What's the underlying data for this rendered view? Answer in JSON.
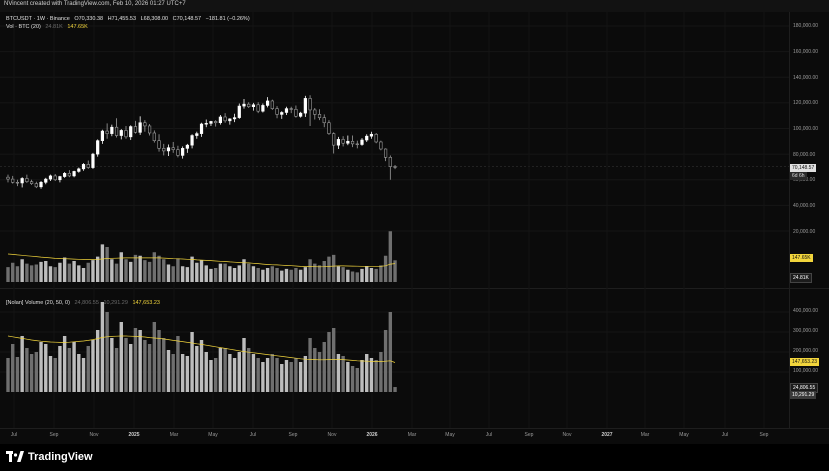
{
  "header": {
    "credit": "NVincent created with TradingView.com, Feb 10, 2026 01:27 UTC+7"
  },
  "main_pane": {
    "symbol": "BTCUSDT · 1W · Binance",
    "ohlc": {
      "open": "O70,330.38",
      "high": "H71,455.53",
      "low": "L68,308.00",
      "close": "C70,148.57",
      "change": "−181.81 (−0.26%)"
    },
    "vol_row": {
      "label": "Vol · BTC (20)",
      "value_muted": "24.81K",
      "value_yellow": "147.65K"
    }
  },
  "volume_pane": {
    "label": "[Nolan] Volume (20, 50, 0)",
    "value_muted_1": "24,806.55",
    "value_muted_2": "10,291.29",
    "value_yellow": "147,653.23"
  },
  "price_axis": {
    "labels": [
      "180,000.00",
      "160,000.00",
      "140,000.00",
      "120,000.00",
      "100,000.00",
      "80,000.00",
      "60,000.00",
      "40,000.00",
      "20,000.00"
    ],
    "current_price": "70,148.57",
    "countdown": "6d 6h",
    "vol_ma_badge": "147.65K",
    "vol_badge": "24.81K"
  },
  "volume_axis": {
    "labels": [
      "400,000.00",
      "300,000.00",
      "200,000.00",
      "100,000.00"
    ],
    "ma_badge": "147,653.23",
    "vol_badge": "24,806.55",
    "vol_badge_2": "10,291.29"
  },
  "time_axis": {
    "labels": [
      "Jul",
      "Sep",
      "Nov",
      "2025",
      "Mar",
      "May",
      "Jul",
      "Sep",
      "Nov",
      "2026",
      "Mar",
      "May",
      "Jul",
      "Sep",
      "Nov",
      "2027",
      "Mar",
      "May",
      "Jul",
      "Sep"
    ],
    "bold_labels": [
      "2025",
      "2026",
      "2027"
    ]
  },
  "footer": {
    "brand": "TradingView"
  },
  "colors": {
    "background": "#0b0b0b",
    "candle_up": "#ffffff",
    "candle_down": "#9e9e9e",
    "ma_line": "#f2d53c",
    "volume_up": "#bdbdbd",
    "volume_down": "#6f6f6f"
  },
  "chart_data": {
    "type": "candlestick",
    "timeframe": "1W",
    "symbol": "BTCUSDT",
    "ylim": [
      0,
      190000
    ],
    "candles": [
      [
        62000,
        64000,
        58000,
        60500
      ],
      [
        60500,
        63000,
        57000,
        58000
      ],
      [
        58000,
        60000,
        55000,
        57500
      ],
      [
        57500,
        62000,
        54000,
        61000
      ],
      [
        61000,
        64000,
        57500,
        58500
      ],
      [
        58500,
        60000,
        56000,
        57000
      ],
      [
        57000,
        58500,
        53500,
        54500
      ],
      [
        54500,
        59000,
        53000,
        58000
      ],
      [
        58000,
        61500,
        56500,
        60500
      ],
      [
        60500,
        64000,
        59000,
        63000
      ],
      [
        63000,
        64500,
        59000,
        60000
      ],
      [
        60000,
        63000,
        58000,
        62500
      ],
      [
        62500,
        66000,
        61500,
        65000
      ],
      [
        65000,
        67500,
        62000,
        63000
      ],
      [
        63000,
        67000,
        62000,
        66500
      ],
      [
        66500,
        69500,
        65500,
        68500
      ],
      [
        68500,
        73000,
        67000,
        72000
      ],
      [
        72000,
        75000,
        68500,
        69500
      ],
      [
        69500,
        81000,
        68500,
        80000
      ],
      [
        80000,
        91500,
        78000,
        90500
      ],
      [
        90500,
        99000,
        88000,
        98000
      ],
      [
        98000,
        104000,
        92000,
        96000
      ],
      [
        96000,
        103000,
        94000,
        101000
      ],
      [
        101000,
        108000,
        93000,
        94500
      ],
      [
        94500,
        99500,
        91500,
        98500
      ],
      [
        98500,
        102000,
        92000,
        93500
      ],
      [
        93500,
        102500,
        91000,
        101500
      ],
      [
        101500,
        106000,
        96000,
        97000
      ],
      [
        97000,
        109500,
        95000,
        104500
      ],
      [
        104500,
        106500,
        97500,
        102000
      ],
      [
        102000,
        103500,
        94500,
        96500
      ],
      [
        96500,
        98500,
        89000,
        90500
      ],
      [
        90500,
        95500,
        82000,
        84500
      ],
      [
        84500,
        88000,
        79000,
        82500
      ],
      [
        82500,
        87500,
        78500,
        85000
      ],
      [
        85000,
        89500,
        81000,
        83500
      ],
      [
        83500,
        86500,
        77500,
        79000
      ],
      [
        79000,
        86000,
        76500,
        84500
      ],
      [
        84500,
        88000,
        81000,
        87000
      ],
      [
        87000,
        95500,
        84500,
        94500
      ],
      [
        94500,
        97500,
        92000,
        96000
      ],
      [
        96000,
        104500,
        93500,
        103500
      ],
      [
        103500,
        107000,
        101000,
        104000
      ],
      [
        104000,
        106000,
        102000,
        105500
      ],
      [
        105500,
        106500,
        101500,
        104500
      ],
      [
        104500,
        110500,
        103000,
        109000
      ],
      [
        109000,
        112000,
        104500,
        106000
      ],
      [
        106000,
        108000,
        103000,
        107500
      ],
      [
        107500,
        111500,
        105000,
        108500
      ],
      [
        108500,
        119500,
        107500,
        117500
      ],
      [
        117500,
        123000,
        115500,
        119000
      ],
      [
        119000,
        120500,
        116000,
        117000
      ],
      [
        117000,
        120000,
        114000,
        118500
      ],
      [
        118500,
        120500,
        112000,
        113500
      ],
      [
        113500,
        119500,
        112500,
        118000
      ],
      [
        118000,
        124500,
        116500,
        121500
      ],
      [
        121500,
        122500,
        114500,
        115500
      ],
      [
        115500,
        117500,
        108000,
        111000
      ],
      [
        111000,
        113500,
        107500,
        112500
      ],
      [
        112500,
        117000,
        110500,
        115500
      ],
      [
        115500,
        117000,
        112000,
        115000
      ],
      [
        115000,
        118000,
        108500,
        109500
      ],
      [
        109500,
        113000,
        108500,
        112000
      ],
      [
        112000,
        125500,
        109000,
        123500
      ],
      [
        123500,
        126000,
        102000,
        114500
      ],
      [
        114500,
        116000,
        107000,
        111000
      ],
      [
        111000,
        115000,
        106500,
        108500
      ],
      [
        108500,
        111000,
        101000,
        104500
      ],
      [
        104500,
        106500,
        95000,
        96000
      ],
      [
        96000,
        97000,
        80500,
        87000
      ],
      [
        87000,
        93500,
        84000,
        91500
      ],
      [
        91500,
        94000,
        86000,
        88500
      ],
      [
        88500,
        94500,
        87000,
        90000
      ],
      [
        90000,
        94500,
        85500,
        88000
      ],
      [
        88000,
        90500,
        84500,
        87500
      ],
      [
        87500,
        92500,
        86500,
        91000
      ],
      [
        91000,
        95500,
        89500,
        94000
      ],
      [
        94000,
        97500,
        92000,
        95500
      ],
      [
        95500,
        96500,
        88500,
        89500
      ],
      [
        89500,
        90500,
        83000,
        84000
      ],
      [
        84000,
        84500,
        74500,
        77500
      ],
      [
        77500,
        79000,
        60000,
        70300
      ],
      [
        70300,
        71500,
        68300,
        70150
      ]
    ],
    "volume_pane_1": {
      "ylim": [
        0,
        80000
      ],
      "values": [
        17000,
        22000,
        18000,
        26000,
        21000,
        19000,
        20000,
        23000,
        24000,
        18000,
        17000,
        22000,
        28000,
        21000,
        24000,
        19000,
        16000,
        22000,
        25000,
        29000,
        43000,
        40000,
        26000,
        21000,
        34000,
        26000,
        23000,
        31000,
        30000,
        25000,
        23000,
        34000,
        30000,
        26000,
        20000,
        18000,
        27000,
        18000,
        17000,
        29000,
        22000,
        25000,
        19000,
        15000,
        16000,
        21000,
        21000,
        18000,
        16000,
        19000,
        26000,
        21000,
        18000,
        16000,
        14000,
        16000,
        18000,
        16000,
        13000,
        15000,
        14000,
        16000,
        14000,
        17000,
        26000,
        21000,
        19000,
        24000,
        29000,
        31000,
        18000,
        17000,
        14000,
        12000,
        11000,
        15000,
        18000,
        16000,
        15000,
        19000,
        30000,
        58000,
        24800
      ],
      "ma_values": [
        32000,
        31500,
        31000,
        30500,
        30000,
        29500,
        29000,
        28500,
        28000,
        27500,
        27000,
        26800,
        26600,
        26400,
        26200,
        26000,
        25800,
        25600,
        25600,
        25900,
        26300,
        26900,
        27100,
        27200,
        27400,
        27500,
        27500,
        27600,
        27700,
        27600,
        27500,
        27600,
        27500,
        27300,
        27000,
        26600,
        26500,
        26300,
        26000,
        25800,
        25300,
        25000,
        24700,
        24400,
        24000,
        23700,
        23400,
        23000,
        22600,
        22300,
        22000,
        21800,
        21400,
        21000,
        20500,
        20000,
        19700,
        19500,
        19200,
        18900,
        18600,
        18300,
        17800,
        17600,
        17600,
        17500,
        17400,
        17500,
        17800,
        18200,
        18400,
        18400,
        18300,
        18200,
        18100,
        18000,
        18000,
        17900,
        17900,
        18000,
        18500,
        20500,
        21000
      ]
    },
    "volume_pane_2": {
      "ylim": [
        0,
        450000
      ],
      "values": [
        170000,
        240000,
        175000,
        280000,
        220000,
        190000,
        200000,
        250000,
        240000,
        180000,
        170000,
        230000,
        280000,
        220000,
        250000,
        190000,
        170000,
        230000,
        260000,
        310000,
        450000,
        400000,
        270000,
        220000,
        350000,
        270000,
        240000,
        320000,
        310000,
        260000,
        240000,
        350000,
        310000,
        270000,
        210000,
        190000,
        280000,
        190000,
        180000,
        300000,
        230000,
        260000,
        200000,
        160000,
        170000,
        220000,
        220000,
        190000,
        170000,
        200000,
        270000,
        220000,
        190000,
        170000,
        150000,
        170000,
        190000,
        170000,
        140000,
        160000,
        150000,
        170000,
        150000,
        180000,
        270000,
        220000,
        200000,
        250000,
        300000,
        320000,
        190000,
        180000,
        150000,
        130000,
        120000,
        160000,
        190000,
        170000,
        160000,
        200000,
        310000,
        400000,
        24800
      ],
      "ma_values": [
        280000,
        276000,
        272000,
        268000,
        264000,
        260000,
        257000,
        254000,
        252000,
        250000,
        249000,
        248000,
        248000,
        249000,
        251000,
        253000,
        255000,
        258000,
        262000,
        267000,
        273000,
        276000,
        278000,
        279000,
        280000,
        280000,
        279000,
        278000,
        277000,
        275000,
        272000,
        270000,
        268000,
        265000,
        262000,
        258000,
        255000,
        252000,
        248000,
        245000,
        241000,
        238000,
        234000,
        230000,
        226000,
        222000,
        218000,
        214000,
        210000,
        206000,
        202000,
        199000,
        196000,
        193000,
        190000,
        187000,
        184000,
        181000,
        178000,
        175000,
        172000,
        169000,
        166000,
        164000,
        163000,
        162000,
        161000,
        161000,
        162000,
        163000,
        163000,
        162000,
        160000,
        158000,
        156000,
        155000,
        154000,
        153000,
        152000,
        152000,
        154000,
        156000,
        147653
      ]
    }
  }
}
